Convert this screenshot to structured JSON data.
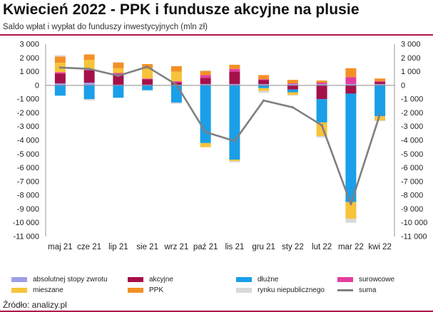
{
  "title": "Kwiecień 2022 - PPK i fundusze akcyjne na plusie",
  "subtitle": "Saldo wpłat i wypłat do funduszy inwestycyjnych (mln zł)",
  "source": "Źródło: analizy.pl",
  "colors": {
    "accent": "#b0124e",
    "absolutnej": "#9e9ee6",
    "akcyjne": "#a6104a",
    "dluzne": "#1a9fe8",
    "surowcowe": "#e23ea0",
    "mieszane": "#f7c33a",
    "ppk": "#f39026",
    "rynku": "#d9d9d9",
    "suma": "#7f7f7f"
  },
  "chart_data": {
    "type": "bar",
    "stacked": true,
    "categories": [
      "maj 21",
      "cze 21",
      "lip 21",
      "sie 21",
      "wrz 21",
      "paź 21",
      "lis 21",
      "gru 21",
      "sty 22",
      "lut 22",
      "mar 22",
      "kwi 22"
    ],
    "ylim": [
      -11000,
      3000
    ],
    "yticks": [
      "3 000",
      "2 000",
      "1 000",
      "0",
      "-1 000",
      "-2 000",
      "-3 000",
      "-4 000",
      "-5 000",
      "-6 000",
      "-7 000",
      "-8 000",
      "-9 000",
      "-10 000",
      "-11 000"
    ],
    "ytick_values": [
      3000,
      2000,
      1000,
      0,
      -1000,
      -2000,
      -3000,
      -4000,
      -5000,
      -6000,
      -7000,
      -8000,
      -9000,
      -10000,
      -11000
    ],
    "axes": "left and right (mirrored)",
    "grid": false,
    "legend_position": "bottom",
    "series": [
      {
        "name": "absolutnej stopy zwrotu",
        "key": "absolutnej",
        "values": [
          150,
          200,
          50,
          50,
          50,
          100,
          100,
          100,
          100,
          100,
          100,
          100
        ]
      },
      {
        "name": "akcyjne",
        "key": "akcyjne",
        "values": [
          700,
          900,
          700,
          400,
          150,
          450,
          900,
          300,
          -300,
          -1000,
          -600,
          150
        ]
      },
      {
        "name": "dłużne",
        "key": "dluzne",
        "values": [
          -750,
          -1000,
          -900,
          -350,
          -1250,
          -4200,
          -5400,
          -200,
          -200,
          -1700,
          -7900,
          -2250
        ]
      },
      {
        "name": "surowcowe",
        "key": "surowcowe",
        "values": [
          100,
          50,
          150,
          50,
          100,
          200,
          200,
          50,
          50,
          100,
          500,
          50
        ]
      },
      {
        "name": "mieszane",
        "key": "mieszane",
        "values": [
          700,
          700,
          350,
          700,
          700,
          -300,
          -100,
          -200,
          -200,
          -1000,
          -1200,
          -300
        ]
      },
      {
        "name": "PPK",
        "key": "ppk",
        "values": [
          450,
          400,
          400,
          350,
          400,
          300,
          300,
          300,
          250,
          150,
          650,
          200
        ]
      },
      {
        "name": "rynku niepublicznego",
        "key": "rynku",
        "values": [
          100,
          -100,
          50,
          -50,
          -100,
          50,
          -100,
          -150,
          -50,
          -100,
          -300,
          -50
        ]
      },
      {
        "name": "suma",
        "key": "suma",
        "type": "line",
        "values": [
          1300,
          1200,
          700,
          1350,
          50,
          -3400,
          -4050,
          -1100,
          -1600,
          -2900,
          -8650,
          -2100
        ]
      }
    ]
  }
}
